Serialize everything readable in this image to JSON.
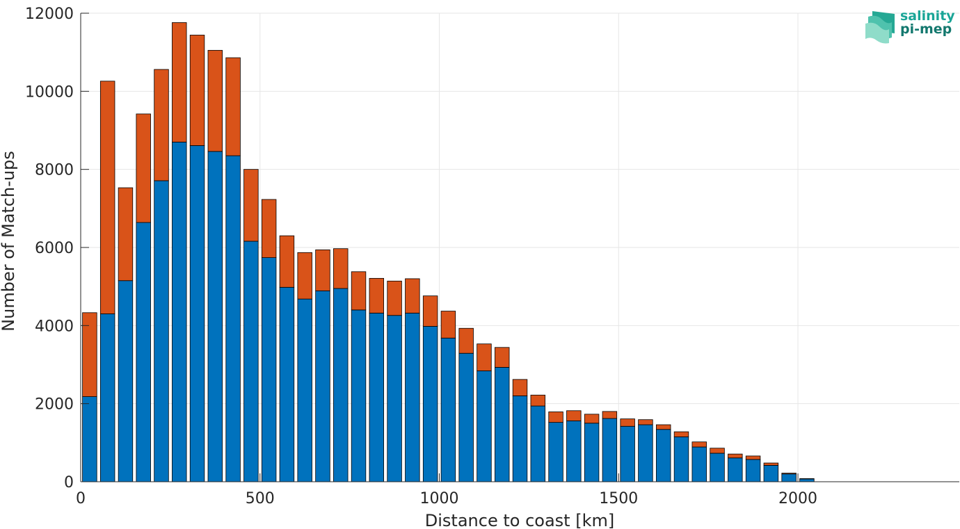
{
  "chart_data": {
    "type": "bar",
    "stacked": true,
    "xlabel": "Distance to coast [km]",
    "ylabel": "Number of Match-ups",
    "xlim": [
      0,
      2450
    ],
    "ylim": [
      0,
      12000
    ],
    "xticks": [
      0,
      500,
      1000,
      1500,
      2000
    ],
    "yticks": [
      0,
      2000,
      4000,
      6000,
      8000,
      10000,
      12000
    ],
    "grid": true,
    "bin_width": 50,
    "x": [
      25,
      75,
      125,
      175,
      225,
      275,
      325,
      375,
      425,
      475,
      525,
      575,
      625,
      675,
      725,
      775,
      825,
      875,
      925,
      975,
      1025,
      1075,
      1125,
      1175,
      1225,
      1275,
      1325,
      1375,
      1425,
      1475,
      1525,
      1575,
      1625,
      1675,
      1725,
      1775,
      1825,
      1875,
      1925,
      1975,
      2025,
      2075,
      2125,
      2175,
      2225,
      2275,
      2325,
      2375
    ],
    "series": [
      {
        "color": "#0072bd",
        "values": [
          2180,
          4300,
          5150,
          6640,
          7710,
          8700,
          8610,
          8460,
          8350,
          6160,
          5740,
          4980,
          4680,
          4890,
          4950,
          4400,
          4320,
          4260,
          4320,
          3980,
          3680,
          3290,
          2840,
          2930,
          2200,
          1940,
          1520,
          1560,
          1500,
          1620,
          1420,
          1460,
          1340,
          1150,
          890,
          730,
          610,
          570,
          420,
          200,
          70,
          0,
          0,
          0,
          0,
          0,
          0,
          0
        ]
      },
      {
        "color": "#d95319",
        "values": [
          2150,
          5960,
          2380,
          2780,
          2850,
          3060,
          2830,
          2590,
          2510,
          1840,
          1490,
          1320,
          1190,
          1050,
          1020,
          980,
          890,
          880,
          880,
          780,
          690,
          640,
          690,
          510,
          420,
          280,
          270,
          260,
          230,
          180,
          190,
          130,
          120,
          130,
          130,
          130,
          100,
          90,
          60,
          20,
          10,
          0,
          0,
          0,
          0,
          0,
          0,
          0
        ]
      }
    ]
  },
  "logo": {
    "line1": "salinity",
    "line2": "pi-mep"
  }
}
